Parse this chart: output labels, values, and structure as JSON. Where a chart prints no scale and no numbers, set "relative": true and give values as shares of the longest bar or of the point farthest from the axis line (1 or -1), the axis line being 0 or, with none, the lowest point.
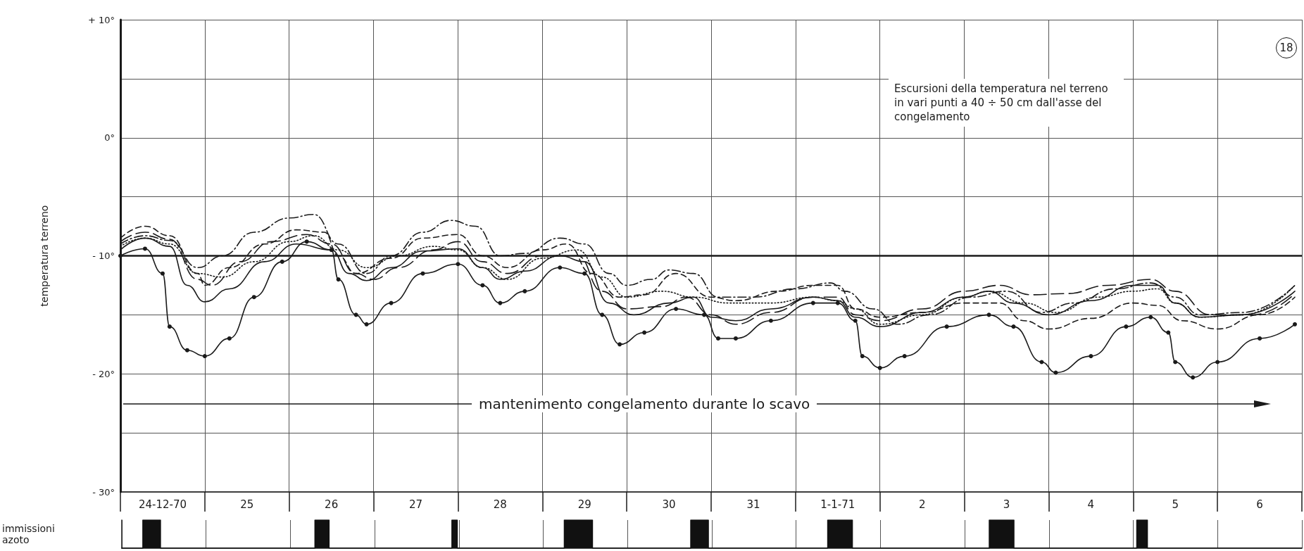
{
  "chart_data": [
    {
      "type": "line",
      "title": "Escursioni della temperatura nel terreno in vari punti a 40 ÷ 50 cm dall'asse del congelamento",
      "ylabel": "temperatura terreno",
      "annotations": [
        "mantenimento congelamento durante lo scavo",
        "18"
      ],
      "xlim": [
        "1970-12-24",
        "1971-01-07"
      ],
      "xticks": [
        {
          "value": "1970-12-24",
          "label": null
        },
        {
          "value": "1970-12-24T12:00",
          "label": "24-12-70"
        },
        {
          "value": "1970-12-25",
          "label": null
        },
        {
          "value": "1970-12-25T12:00",
          "label": "25"
        },
        {
          "value": "1970-12-26",
          "label": null
        },
        {
          "value": "1970-12-26T12:00",
          "label": "26"
        },
        {
          "value": "1970-12-27",
          "label": null
        },
        {
          "value": "1970-12-27T12:00",
          "label": "27"
        },
        {
          "value": "1970-12-28",
          "label": null
        },
        {
          "value": "1970-12-28T12:00",
          "label": "28"
        },
        {
          "value": "1970-12-29",
          "label": null
        },
        {
          "value": "1970-12-29T12:00",
          "label": "29"
        },
        {
          "value": "1970-12-30",
          "label": null
        },
        {
          "value": "1970-12-30T12:00",
          "label": "30"
        },
        {
          "value": "1970-12-31",
          "label": null
        },
        {
          "value": "1970-12-31T12:00",
          "label": "31"
        },
        {
          "value": "1971-01-01",
          "label": null
        },
        {
          "value": "1971-01-01T12:00",
          "label": "1-1-71"
        },
        {
          "value": "1971-01-02",
          "label": null
        },
        {
          "value": "1971-01-02T12:00",
          "label": "2"
        },
        {
          "value": "1971-01-03",
          "label": null
        },
        {
          "value": "1971-01-03T12:00",
          "label": "3"
        },
        {
          "value": "1971-01-04",
          "label": null
        },
        {
          "value": "1971-01-04T12:00",
          "label": "4"
        },
        {
          "value": "1971-01-05",
          "label": null
        },
        {
          "value": "1971-01-05T12:00",
          "label": "5"
        },
        {
          "value": "1971-01-06",
          "label": null
        },
        {
          "value": "1971-01-06T12:00",
          "label": "6"
        },
        {
          "value": "1971-01-07",
          "label": null
        }
      ],
      "ylim": [
        -30,
        10
      ],
      "yticks": [
        {
          "value": -30,
          "label": "- 30°"
        },
        {
          "value": -25,
          "label": null
        },
        {
          "value": -20,
          "label": "- 20°"
        },
        {
          "value": -15,
          "label": null
        },
        {
          "value": -10,
          "label": "- 10°"
        },
        {
          "value": -5,
          "label": null
        },
        {
          "value": 0,
          "label": "0°"
        },
        {
          "value": 5,
          "label": null
        },
        {
          "value": 10,
          "label": "+ 10°"
        }
      ],
      "grid": true,
      "ref_lines": [
        {
          "axis": "y",
          "value": -10,
          "color": "#1a1a1a"
        }
      ],
      "series": [
        {
          "color": "#1a1a1a",
          "marker": "circle",
          "line_style": "solid",
          "x": [
            "1970-12-24",
            "1970-12-24T07:00",
            "1970-12-24T12:00",
            "1970-12-24T14:00",
            "1970-12-24T19:00",
            "1970-12-25",
            "1970-12-25T07:00",
            "1970-12-25T14:00",
            "1970-12-25T22:00",
            "1970-12-26T05:00",
            "1970-12-26T12:00",
            "1970-12-26T14:00",
            "1970-12-26T19:00",
            "1970-12-26T22:00",
            "1970-12-27T05:00",
            "1970-12-27T14:00",
            "1970-12-28",
            "1970-12-28T07:00",
            "1970-12-28T12:00",
            "1970-12-28T19:00",
            "1970-12-29T05:00",
            "1970-12-29T12:00",
            "1970-12-29T17:00",
            "1970-12-29T22:00",
            "1970-12-30T05:00",
            "1970-12-30T14:00",
            "1970-12-30T22:00",
            "1970-12-31T02:00",
            "1970-12-31T07:00",
            "1970-12-31T17:00",
            "1971-01-01T05:00",
            "1971-01-01T12:00",
            "1971-01-01T17:00",
            "1971-01-01T19:00",
            "1971-01-02",
            "1971-01-02T07:00",
            "1971-01-02T19:00",
            "1971-01-03T07:00",
            "1971-01-03T14:00",
            "1971-01-03T22:00",
            "1971-01-04T02:00",
            "1971-01-04T12:00",
            "1971-01-04T22:00",
            "1971-01-05T05:00",
            "1971-01-05T10:00",
            "1971-01-05T12:00",
            "1971-01-05T17:00",
            "1971-01-06",
            "1971-01-06T12:00",
            "1971-01-06T22:00"
          ],
          "values": [
            -10,
            -9.4,
            -11.5,
            -16,
            -18,
            -18.5,
            -17,
            -13.5,
            -10.5,
            -8.8,
            -9.5,
            -12,
            -15,
            -15.8,
            -14,
            -11.5,
            -10.7,
            -12.5,
            -14,
            -13,
            -11,
            -11.5,
            -15,
            -17.5,
            -16.5,
            -14.5,
            -15,
            -17,
            -17,
            -15.5,
            -14,
            -14,
            -15.5,
            -18.5,
            -19.5,
            -18.5,
            -16,
            -15,
            -16,
            -19,
            -19.9,
            -18.5,
            -16,
            -15.2,
            -16.5,
            -19,
            -20.3,
            -19,
            -17,
            -15.8
          ]
        },
        {
          "color": "#1a1a1a",
          "marker": "none",
          "line_style": "solid",
          "x": [
            "1970-12-24",
            "1970-12-24T07:00",
            "1970-12-24T14:00",
            "1970-12-24T19:00",
            "1970-12-25",
            "1970-12-25T07:00",
            "1970-12-25T17:00",
            "1970-12-26T02:00",
            "1970-12-26T12:00",
            "1970-12-26T17:00",
            "1970-12-26T22:00",
            "1970-12-27T05:00",
            "1970-12-27T14:00",
            "1970-12-28",
            "1970-12-28T07:00",
            "1970-12-28T12:00",
            "1970-12-28T19:00",
            "1970-12-29T05:00",
            "1970-12-29T12:00",
            "1970-12-29T19:00",
            "1970-12-30T02:00",
            "1970-12-30T12:00",
            "1970-12-30T19:00",
            "1970-12-31",
            "1970-12-31T07:00",
            "1970-12-31T17:00",
            "1971-01-01T05:00",
            "1971-01-01T12:00",
            "1971-01-01T17:00",
            "1971-01-02",
            "1971-01-02T12:00",
            "1971-01-03",
            "1971-01-03T07:00",
            "1971-01-03T14:00",
            "1971-01-04",
            "1971-01-04T12:00",
            "1971-01-05",
            "1971-01-05T07:00",
            "1971-01-05T12:00",
            "1971-01-05T19:00",
            "1971-01-06T07:00",
            "1971-01-06T22:00"
          ],
          "values": [
            -9.5,
            -8.5,
            -9.2,
            -12.5,
            -13.9,
            -12.8,
            -10.5,
            -9,
            -9.5,
            -11.5,
            -12.1,
            -11,
            -9.6,
            -9.4,
            -11,
            -12,
            -11.3,
            -10,
            -10.5,
            -14,
            -15,
            -14,
            -13.5,
            -15.2,
            -15.5,
            -14.5,
            -13.5,
            -13.8,
            -15.2,
            -16,
            -14.8,
            -13.5,
            -13,
            -14,
            -15,
            -13.8,
            -12.5,
            -12.5,
            -14,
            -15.2,
            -15,
            -13
          ]
        },
        {
          "color": "#1a1a1a",
          "marker": "none",
          "line_style": "dashed",
          "x": [
            "1970-12-24",
            "1970-12-24T07:00",
            "1970-12-24T14:00",
            "1970-12-24T22:00",
            "1970-12-25",
            "1970-12-25T07:00",
            "1970-12-25T17:00",
            "1970-12-26T02:00",
            "1970-12-26T10:00",
            "1970-12-26T14:00",
            "1970-12-26T19:00",
            "1970-12-27T05:00",
            "1970-12-27T14:00",
            "1970-12-28",
            "1970-12-28T07:00",
            "1970-12-28T14:00",
            "1970-12-29",
            "1970-12-29T07:00",
            "1970-12-29T14:00",
            "1970-12-29T22:00",
            "1970-12-30T05:00",
            "1970-12-30T14:00",
            "1970-12-31",
            "1970-12-31T07:00",
            "1970-12-31T19:00",
            "1971-01-01T05:00",
            "1971-01-01T12:00",
            "1971-01-01T17:00",
            "1971-01-02",
            "1971-01-02T12:00",
            "1971-01-03",
            "1971-01-03T10:00",
            "1971-01-03T17:00",
            "1971-01-04",
            "1971-01-04T12:00",
            "1971-01-05",
            "1971-01-05T07:00",
            "1971-01-05T14:00",
            "1971-01-06",
            "1971-01-06T12:00",
            "1971-01-06T22:00"
          ],
          "values": [
            -8.5,
            -7.5,
            -8.3,
            -11.5,
            -12.5,
            -11,
            -9,
            -7.8,
            -8,
            -10,
            -11.5,
            -10.2,
            -8.5,
            -8.2,
            -10,
            -11,
            -9.5,
            -9,
            -11.5,
            -13.5,
            -13.3,
            -11.5,
            -13.5,
            -13.8,
            -13,
            -12.5,
            -12.5,
            -14.5,
            -15.2,
            -14.8,
            -14,
            -14,
            -15.5,
            -16.2,
            -15.3,
            -14,
            -14.2,
            -15.5,
            -16.2,
            -15,
            -13.5
          ]
        },
        {
          "color": "#1a1a1a",
          "marker": "none",
          "line_style": "dashdot",
          "x": [
            "1970-12-24",
            "1970-12-24T07:00",
            "1970-12-24T14:00",
            "1970-12-24T22:00",
            "1970-12-25T05:00",
            "1970-12-25T14:00",
            "1970-12-26",
            "1970-12-26T07:00",
            "1970-12-26T14:00",
            "1970-12-26T22:00",
            "1970-12-27T05:00",
            "1970-12-27T14:00",
            "1970-12-27T22:00",
            "1970-12-28T05:00",
            "1970-12-28T12:00",
            "1970-12-28T19:00",
            "1970-12-29T05:00",
            "1970-12-29T12:00",
            "1970-12-29T19:00",
            "1970-12-30",
            "1970-12-30T07:00",
            "1970-12-30T12:00",
            "1970-12-30T19:00",
            "1970-12-31T02:00",
            "1970-12-31T12:00",
            "1971-01-01",
            "1971-01-01T10:00",
            "1971-01-01T14:00",
            "1971-01-01T22:00",
            "1971-01-02T05:00",
            "1971-01-02T14:00",
            "1971-01-03T02:00",
            "1971-01-03T12:00",
            "1971-01-03T22:00",
            "1971-01-04T07:00",
            "1971-01-04T19:00",
            "1971-01-05T05:00",
            "1971-01-05T12:00",
            "1971-01-05T19:00",
            "1971-01-06T07:00",
            "1971-01-06T22:00"
          ],
          "values": [
            -9,
            -8.3,
            -8.7,
            -11,
            -10,
            -8,
            -6.8,
            -6.5,
            -9,
            -11.5,
            -10,
            -8,
            -7,
            -7.5,
            -10,
            -9.8,
            -8.5,
            -9,
            -11.5,
            -12.5,
            -12,
            -11.2,
            -11.5,
            -13.5,
            -13.5,
            -12.8,
            -12.3,
            -13,
            -14.5,
            -15.8,
            -15,
            -13.5,
            -13,
            -14.8,
            -14,
            -12.8,
            -12.3,
            -13.5,
            -15,
            -14.8,
            -12.5
          ]
        },
        {
          "color": "#1a1a1a",
          "marker": "none",
          "line_style": "dotted",
          "x": [
            "1970-12-24",
            "1970-12-24T07:00",
            "1970-12-24T14:00",
            "1970-12-24T22:00",
            "1970-12-25T05:00",
            "1970-12-25T14:00",
            "1970-12-26",
            "1970-12-26T07:00",
            "1970-12-26T14:00",
            "1970-12-26T22:00",
            "1970-12-27T07:00",
            "1970-12-27T17:00",
            "1970-12-28",
            "1970-12-28T07:00",
            "1970-12-28T14:00",
            "1970-12-29",
            "1970-12-29T10:00",
            "1970-12-29T17:00",
            "1970-12-30",
            "1970-12-30T10:00",
            "1970-12-30T19:00",
            "1970-12-31T05:00",
            "1970-12-31T17:00",
            "1971-01-01T05:00",
            "1971-01-01T12:00",
            "1971-01-01T17:00",
            "1971-01-02",
            "1971-01-02T12:00",
            "1971-01-03",
            "1971-01-03T07:00",
            "1971-01-03T17:00",
            "1971-01-04T02:00",
            "1971-01-04T14:00",
            "1971-01-05",
            "1971-01-05T07:00",
            "1971-01-05T12:00",
            "1971-01-05T19:00",
            "1971-01-06T07:00",
            "1971-01-06T22:00"
          ],
          "values": [
            -9.2,
            -8.5,
            -9,
            -11.5,
            -11.8,
            -10.5,
            -8.8,
            -8.3,
            -9.5,
            -11,
            -10,
            -9.2,
            -9.5,
            -11,
            -12,
            -10.2,
            -9.5,
            -11.8,
            -13.5,
            -13,
            -13.5,
            -14,
            -14,
            -13.5,
            -13.8,
            -14.5,
            -15.8,
            -15,
            -13.5,
            -13,
            -14,
            -14.8,
            -13.5,
            -13,
            -12.8,
            -14,
            -15.2,
            -15,
            -12.5
          ]
        },
        {
          "color": "#1a1a1a",
          "marker": "none",
          "line_style": "longdash",
          "x": [
            "1970-12-24",
            "1970-12-24T07:00",
            "1970-12-24T14:00",
            "1970-12-24T22:00",
            "1970-12-25T02:00",
            "1970-12-25T10:00",
            "1970-12-25T19:00",
            "1970-12-26T05:00",
            "1970-12-26T12:00",
            "1970-12-26T19:00",
            "1970-12-27",
            "1970-12-27T07:00",
            "1970-12-27T17:00",
            "1970-12-28",
            "1970-12-28T07:00",
            "1970-12-28T14:00",
            "1970-12-29",
            "1970-12-29T10:00",
            "1970-12-29T17:00",
            "1970-12-30",
            "1970-12-30T10:00",
            "1970-12-30T17:00",
            "1970-12-31",
            "1970-12-31T07:00",
            "1970-12-31T17:00",
            "1971-01-01T05:00",
            "1971-01-01T12:00",
            "1971-01-01T17:00",
            "1971-01-02",
            "1971-01-02T12:00",
            "1971-01-03",
            "1971-01-03T10:00",
            "1971-01-03T19:00",
            "1971-01-04T05:00",
            "1971-01-04T17:00",
            "1971-01-05T05:00",
            "1971-01-05T12:00",
            "1971-01-05T22:00",
            "1971-01-06T10:00",
            "1971-01-06T22:00"
          ],
          "values": [
            -8.8,
            -8,
            -8.6,
            -12,
            -12.5,
            -10.5,
            -8.8,
            -8.2,
            -9,
            -11.5,
            -12,
            -11,
            -9.5,
            -8.8,
            -10.5,
            -11.5,
            -10,
            -10,
            -13,
            -14.5,
            -14.3,
            -13.5,
            -15,
            -15.8,
            -14.8,
            -13.5,
            -13.5,
            -15,
            -15.5,
            -14.5,
            -13,
            -12.5,
            -13.3,
            -13.2,
            -12.5,
            -12,
            -13,
            -15,
            -15,
            -13.2
          ]
        }
      ]
    },
    {
      "type": "area",
      "relative": true,
      "ylabel": "immissioni azoto",
      "xlim": [
        "1970-12-24",
        "1971-01-07"
      ],
      "xticks": [
        {
          "value": "1970-12-24",
          "label": null
        },
        {
          "value": "1970-12-25",
          "label": null
        },
        {
          "value": "1970-12-26",
          "label": null
        },
        {
          "value": "1970-12-27",
          "label": null
        },
        {
          "value": "1970-12-28",
          "label": null
        },
        {
          "value": "1970-12-29",
          "label": null
        },
        {
          "value": "1970-12-30",
          "label": null
        },
        {
          "value": "1970-12-31",
          "label": null
        },
        {
          "value": "1971-01-01",
          "label": null
        },
        {
          "value": "1971-01-02",
          "label": null
        },
        {
          "value": "1971-01-03",
          "label": null
        },
        {
          "value": "1971-01-04",
          "label": null
        },
        {
          "value": "1971-01-05",
          "label": null
        },
        {
          "value": "1971-01-06",
          "label": null
        },
        {
          "value": "1971-01-07",
          "label": null
        }
      ],
      "grid": "x",
      "tick_labels": false,
      "series": [
        {
          "color": "#111111",
          "x": [
            "1970-12-24",
            "1970-12-24T06:00",
            "1970-12-24T06:00",
            "1970-12-24T11:00",
            "1970-12-24T11:00",
            "1970-12-26T07:00",
            "1970-12-26T07:00",
            "1970-12-26T11:00",
            "1970-12-26T11:00",
            "1970-12-27T22:00",
            "1970-12-27T22:00",
            "1970-12-27T23:30",
            "1970-12-27T23:30",
            "1970-12-29T06:00",
            "1970-12-29T06:00",
            "1970-12-29T14:00",
            "1970-12-29T14:00",
            "1970-12-30T18:00",
            "1970-12-30T18:00",
            "1970-12-30T23:00",
            "1970-12-30T23:00",
            "1971-01-01T09:00",
            "1971-01-01T09:00",
            "1971-01-01T16:00",
            "1971-01-01T16:00",
            "1971-01-03T07:00",
            "1971-01-03T07:00",
            "1971-01-03T14:00",
            "1971-01-03T14:00",
            "1971-01-05T01:00",
            "1971-01-05T01:00",
            "1971-01-05T04:00",
            "1971-01-05T04:00",
            "1971-01-07"
          ],
          "values": [
            0,
            0,
            1,
            1,
            0,
            0,
            1,
            1,
            0,
            0,
            1,
            1,
            0,
            0,
            1,
            1,
            0,
            0,
            1,
            1,
            0,
            0,
            1,
            1,
            0,
            0,
            1,
            1,
            0,
            0,
            1,
            1,
            0,
            0
          ]
        }
      ]
    }
  ]
}
